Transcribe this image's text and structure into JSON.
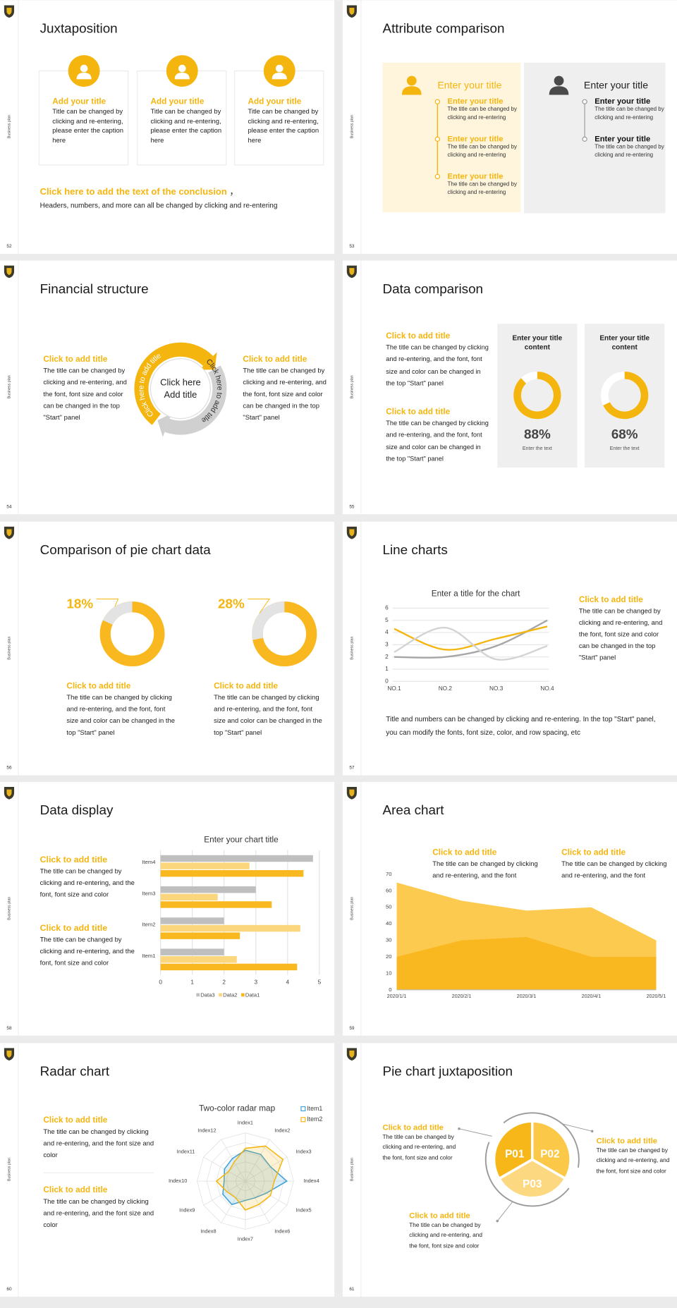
{
  "slides": [
    {
      "number": 52,
      "side_label": "Business plan",
      "title": "Juxtaposition",
      "cards": [
        {
          "title": "Add your title",
          "text": "Title can be changed by clicking and re-entering, please enter the caption here"
        },
        {
          "title": "Add your title",
          "text": "Title can be changed by clicking and re-entering, please enter the caption here"
        },
        {
          "title": "Add your title",
          "text": "Title can be changed by clicking and re-entering, please enter the caption here"
        }
      ],
      "conclusion": "Click here to add the text of the conclusion",
      "conclusion_suffix": " ，",
      "footer": "Headers, numbers, and more can all be changed by clicking and re-entering"
    },
    {
      "number": 53,
      "side_label": "Business plan",
      "title": "Attribute comparison",
      "left": {
        "title": "Enter your title",
        "items": [
          {
            "title": "Enter your title",
            "text": "The title can be changed by clicking and re-entering"
          },
          {
            "title": "Enter your title",
            "text": "The title can be changed by clicking and re-entering"
          },
          {
            "title": "Enter your title",
            "text": "The title can be changed by clicking and re-entering"
          }
        ]
      },
      "right": {
        "title": "Enter your title",
        "items": [
          {
            "title": "Enter your title",
            "text": "The title can be changed by clicking and re-entering"
          },
          {
            "title": "Enter your title",
            "text": "The title can be changed by clicking and re-entering"
          }
        ]
      }
    },
    {
      "number": 54,
      "side_label": "Business plan",
      "title": "Financial structure",
      "left": {
        "title": "Click to add title",
        "text": "The title can be changed by clicking and re-entering, and the font, font size and color can be changed in the top \"Start\" panel"
      },
      "right": {
        "title": "Click to add title",
        "text": "The title can be changed by clicking and re-entering, and the font, font size and color can be changed in the top \"Start\" panel"
      },
      "center": [
        "Click here",
        "Add title"
      ],
      "arc_labels": [
        "Click here to add title",
        "Click here to add title"
      ]
    },
    {
      "number": 55,
      "side_label": "Business plan",
      "title": "Data comparison",
      "blocks": [
        {
          "title": "Click to add title",
          "text": "The title can be changed by clicking and re-entering, and the font, font size and color can be changed in the top \"Start\" panel"
        },
        {
          "title": "Click to add title",
          "text": "The title can be changed by clicking and re-entering, and the font, font size and color can be changed in the top \"Start\" panel"
        }
      ],
      "chart": {
        "type": "donut",
        "titles": [
          "Enter your title content",
          "Enter your title content"
        ],
        "values": [
          88,
          68
        ],
        "value_labels": [
          "88%",
          "68%"
        ],
        "captions": [
          "Enter the text",
          "Enter the text"
        ],
        "color": "#f5b50f",
        "track_color": "#ffffff"
      }
    },
    {
      "number": 56,
      "side_label": "Business plan",
      "title": "Comparison of pie chart data",
      "chart": {
        "type": "donut",
        "values": [
          18,
          28
        ],
        "value_labels": [
          "18%",
          "28%"
        ],
        "color": "#e3e3e3",
        "track_color": "#f9b820"
      },
      "blocks": [
        {
          "title": "Click to add title",
          "text": "The title can be changed by clicking and re-entering, and the font, font size and color can be changed in the top \"Start\" panel"
        },
        {
          "title": "Click to add title",
          "text": "The title can be changed by clicking and re-entering, and the font, font size and color can be changed in the top \"Start\" panel"
        }
      ]
    },
    {
      "number": 57,
      "side_label": "Business plan",
      "title": "Line charts",
      "chart": {
        "type": "line",
        "title": "Enter a title for the chart",
        "categories": [
          "NO.1",
          "NO.2",
          "NO.3",
          "NO.4"
        ],
        "series": [
          {
            "color": "#a6a6a6",
            "values": [
              2,
              2,
              2.9,
              5
            ]
          },
          {
            "color": "#f5b50f",
            "values": [
              4.3,
              2.6,
              3.5,
              4.5
            ]
          },
          {
            "color": "#d3d3d3",
            "values": [
              2.4,
              4.4,
              1.8,
              2.9
            ]
          }
        ],
        "ylim": [
          0,
          6
        ],
        "yticks": [
          0,
          1,
          2,
          3,
          4,
          5,
          6
        ],
        "grid": true
      },
      "aside": {
        "title": "Click to add title",
        "text": "The title can be changed by clicking and re-entering, and the font, font size and color can be changed in the top \"Start\" panel"
      },
      "note": "Title and numbers can be changed by clicking and re-entering. In the top \"Start\" panel, you can modify the fonts, font size, color, and row spacing, etc"
    },
    {
      "number": 58,
      "side_label": "Business plan",
      "title": "Data display",
      "blocks": [
        {
          "title": "Click to add title",
          "text": "The title can be changed by clicking and re-entering, and the font, font size and color"
        },
        {
          "title": "Click to add title",
          "text": "The title can be changed by clicking and re-entering, and the font, font size and color"
        }
      ],
      "chart": {
        "type": "bar",
        "orientation": "horizontal",
        "title": "Enter your chart title",
        "categories": [
          "Item1",
          "Item2",
          "Item3",
          "Item4"
        ],
        "series": [
          {
            "name": "Data3",
            "color": "#bfbfbf",
            "values": [
              2,
              2,
              3,
              4.8
            ]
          },
          {
            "name": "Data2",
            "color": "#fcd67c",
            "values": [
              2.4,
              4.4,
              1.8,
              2.8
            ]
          },
          {
            "name": "Data1",
            "color": "#f9b820",
            "values": [
              4.3,
              2.5,
              3.5,
              4.5
            ]
          }
        ],
        "xlim": [
          0,
          5
        ],
        "xticks": [
          0,
          1,
          2,
          3,
          4,
          5
        ],
        "grid": true,
        "legend": "bottom"
      }
    },
    {
      "number": 59,
      "side_label": "Business plan",
      "title": "Area chart",
      "blocks": [
        {
          "title": "Click to add title",
          "text": "The title can be changed by clicking and re-entering, and the font"
        },
        {
          "title": "Click to add title",
          "text": "The title can be changed by clicking and re-entering, and the font"
        }
      ],
      "chart": {
        "type": "area",
        "categories": [
          "2020/1/1",
          "2020/2/1",
          "2020/3/1",
          "2020/4/1",
          "2020/5/1"
        ],
        "series": [
          {
            "color": "#fcca4e",
            "values": [
              65,
              54,
              48,
              50,
              30
            ]
          },
          {
            "color": "#f9b820",
            "values": [
              20,
              30,
              32,
              20,
              20
            ]
          }
        ],
        "ylim": [
          0,
          70
        ],
        "yticks": [
          0,
          10,
          20,
          30,
          40,
          50,
          60,
          70
        ],
        "grid": false
      }
    },
    {
      "number": 60,
      "side_label": "Business plan",
      "title": "Radar chart",
      "blocks": [
        {
          "title": "Click to add title",
          "text": "The title can be changed by clicking and re-entering, and the font size and color"
        },
        {
          "title": "Click to add title",
          "text": "The title can be changed by clicking and re-entering, and the font size and color"
        }
      ],
      "chart": {
        "type": "radar",
        "title": "Two-color radar map",
        "categories": [
          "Index1",
          "Index2",
          "Index3",
          "Index4",
          "Index5",
          "Index6",
          "Index7",
          "Index8",
          "Index9",
          "Index10",
          "Index11",
          "Index12"
        ],
        "series": [
          {
            "name": "Item1",
            "color": "#3fa0d6",
            "values": [
              3.2,
              3.2,
              3.0,
              4.3,
              2.5,
              2.0,
              2.0,
              2.8,
              2.7,
              2.2,
              2.5,
              2.7
            ]
          },
          {
            "name": "Item2",
            "color": "#f5b50f",
            "values": [
              3.4,
              4.2,
              4.5,
              3.0,
              3.0,
              2.8,
              3.0,
              2.0,
              2.2,
              3.0,
              2.0,
              2.3
            ]
          }
        ],
        "rlim": [
          0,
          5
        ],
        "legend": "top-right"
      }
    },
    {
      "number": 61,
      "side_label": "Business plan",
      "title": "Pie chart juxtaposition",
      "sectors": [
        {
          "label": "P01",
          "color": "#f7b718"
        },
        {
          "label": "P02",
          "color": "#fbc848"
        },
        {
          "label": "P03",
          "color": "#fcd880"
        }
      ],
      "blocks": [
        {
          "title": "Click to add title",
          "text": "The title can be changed by clicking and re-entering, and the font, font size and color"
        },
        {
          "title": "Click to add title",
          "text": "The title can be changed by clicking and re-entering, and the font, font size and color"
        },
        {
          "title": "Click to add title",
          "text": "The title can be changed by clicking and re-entering, and the font, font size and color"
        }
      ]
    }
  ]
}
